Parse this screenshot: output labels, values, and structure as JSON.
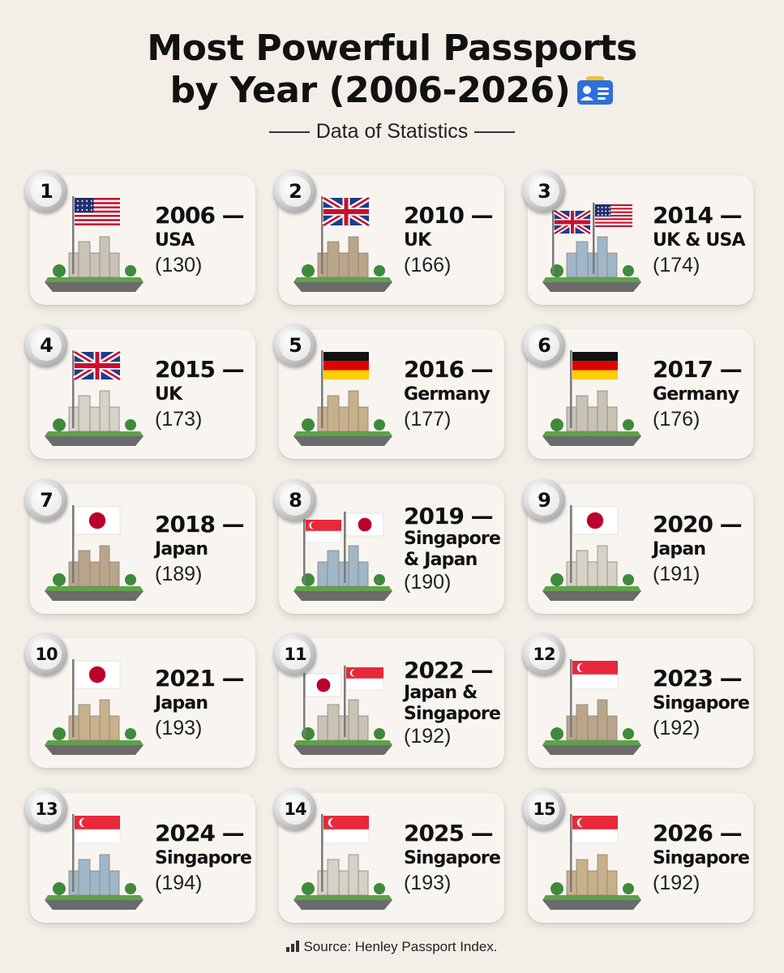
{
  "title": {
    "line1": "Most Powerful Passports",
    "line2": "by Year (2006-2026)"
  },
  "subtitle": "Data of Statistics",
  "source": "Source: Henley Passport Index.",
  "colors": {
    "background": "#f3efe8",
    "card": "#f8f5f1",
    "text": "#111111",
    "icon_blue": "#2f6fd8"
  },
  "entries": [
    {
      "rank": "1",
      "year": "2006 —",
      "country": "USA",
      "score": "(130)",
      "flags": [
        "usa"
      ],
      "scene": "white-house-eagle"
    },
    {
      "rank": "2",
      "year": "2010 —",
      "country": "UK",
      "score": "(166)",
      "flags": [
        "uk"
      ],
      "scene": "big-ben-bus"
    },
    {
      "rank": "3",
      "year": "2014 —",
      "country": "UK & USA",
      "score": "(174)",
      "flags": [
        "uk",
        "usa"
      ],
      "scene": "tower-bridge-liberty"
    },
    {
      "rank": "4",
      "year": "2015 —",
      "country": "UK",
      "score": "(173)",
      "flags": [
        "uk"
      ],
      "scene": "london-eye"
    },
    {
      "rank": "5",
      "year": "2016 —",
      "country": "Germany",
      "score": "(177)",
      "flags": [
        "germany"
      ],
      "scene": "brandenburg-gate"
    },
    {
      "rank": "6",
      "year": "2017 —",
      "country": "Germany",
      "score": "(176)",
      "flags": [
        "germany"
      ],
      "scene": "castle"
    },
    {
      "rank": "7",
      "year": "2018 —",
      "country": "Japan",
      "score": "(189)",
      "flags": [
        "japan"
      ],
      "scene": "mount-fuji"
    },
    {
      "rank": "8",
      "year": "2019 —",
      "country": "Singapore & Japan",
      "country_lines": [
        "Singapore",
        "& Japan"
      ],
      "score": "(190)",
      "flags": [
        "singapore",
        "japan"
      ],
      "scene": "marina-bay-tokyo-tower"
    },
    {
      "rank": "9",
      "year": "2020 —",
      "country": "Japan",
      "score": "(191)",
      "flags": [
        "japan"
      ],
      "scene": "torii-gate"
    },
    {
      "rank": "10",
      "year": "2021 —",
      "country": "Japan",
      "score": "(193)",
      "flags": [
        "japan"
      ],
      "scene": "tokyo-skyline"
    },
    {
      "rank": "11",
      "year": "2022 —",
      "country": "Japan & Singapore",
      "country_lines": [
        "Japan &",
        "Singapore"
      ],
      "score": "(192)",
      "flags": [
        "japan",
        "singapore"
      ],
      "scene": "castle-supertrees"
    },
    {
      "rank": "12",
      "year": "2023 —",
      "country": "Singapore",
      "score": "(192)",
      "flags": [
        "singapore"
      ],
      "scene": "merlion-dome"
    },
    {
      "rank": "13",
      "year": "2024 —",
      "country": "Singapore",
      "score": "(194)",
      "flags": [
        "singapore"
      ],
      "scene": "drone-city"
    },
    {
      "rank": "14",
      "year": "2025 —",
      "country": "Singapore",
      "score": "(193)",
      "flags": [
        "singapore"
      ],
      "scene": "green-city"
    },
    {
      "rank": "15",
      "year": "2026 —",
      "country": "Singapore",
      "score": "(192)",
      "flags": [
        "singapore"
      ],
      "scene": "marina-bay-plane"
    }
  ]
}
